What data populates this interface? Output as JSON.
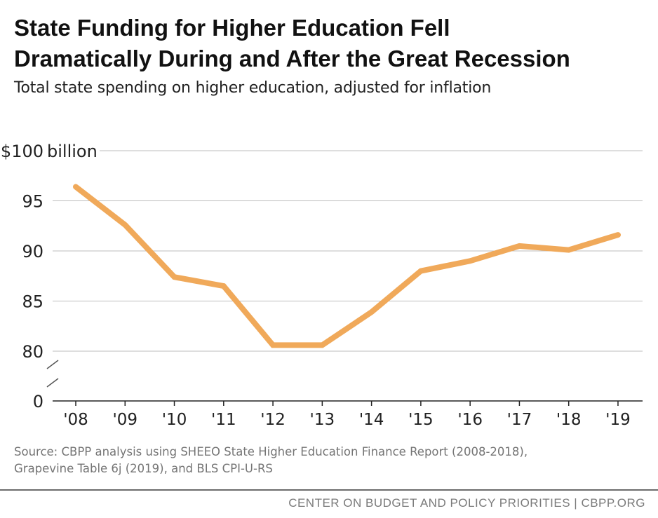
{
  "title_lines": [
    "State Funding for Higher Education Fell",
    "Dramatically During and After the Great Recession"
  ],
  "subtitle": "Total state spending on higher education, adjusted for inflation",
  "source_lines": [
    "Source: CBPP analysis using SHEEO State Higher Education Finance Report (2008-2018),",
    "Grapevine Table 6j (2019), and BLS CPI-U-RS"
  ],
  "footer": "CENTER ON BUDGET AND POLICY PRIORITIES | CBPP.ORG",
  "chart_data": {
    "type": "line",
    "title": "State Funding for Higher Education Fell Dramatically During and After the Great Recession",
    "subtitle": "Total state spending on higher education, adjusted for inflation",
    "categories": [
      "'08",
      "'09",
      "'10",
      "'11",
      "'12",
      "'13",
      "'14",
      "'15",
      "'16",
      "'17",
      "'18",
      "'19"
    ],
    "series": [
      {
        "values": [
          96.4,
          92.6,
          87.4,
          86.5,
          80.6,
          80.6,
          83.9,
          88.0,
          89.0,
          90.5,
          90.1,
          91.6
        ],
        "color": "#f0a95a"
      }
    ],
    "y_ticks": [
      {
        "value": 100,
        "label": "$100",
        "unit": "billion"
      },
      {
        "value": 95,
        "label": "95"
      },
      {
        "value": 90,
        "label": "90"
      },
      {
        "value": 85,
        "label": "85"
      },
      {
        "value": 80,
        "label": "80"
      }
    ],
    "y_zero_label": "0",
    "axis_break": true,
    "ylim": [
      80,
      100
    ],
    "grid": true,
    "grid_color": "#bdbdbd",
    "xlabel": "",
    "ylabel": ""
  }
}
